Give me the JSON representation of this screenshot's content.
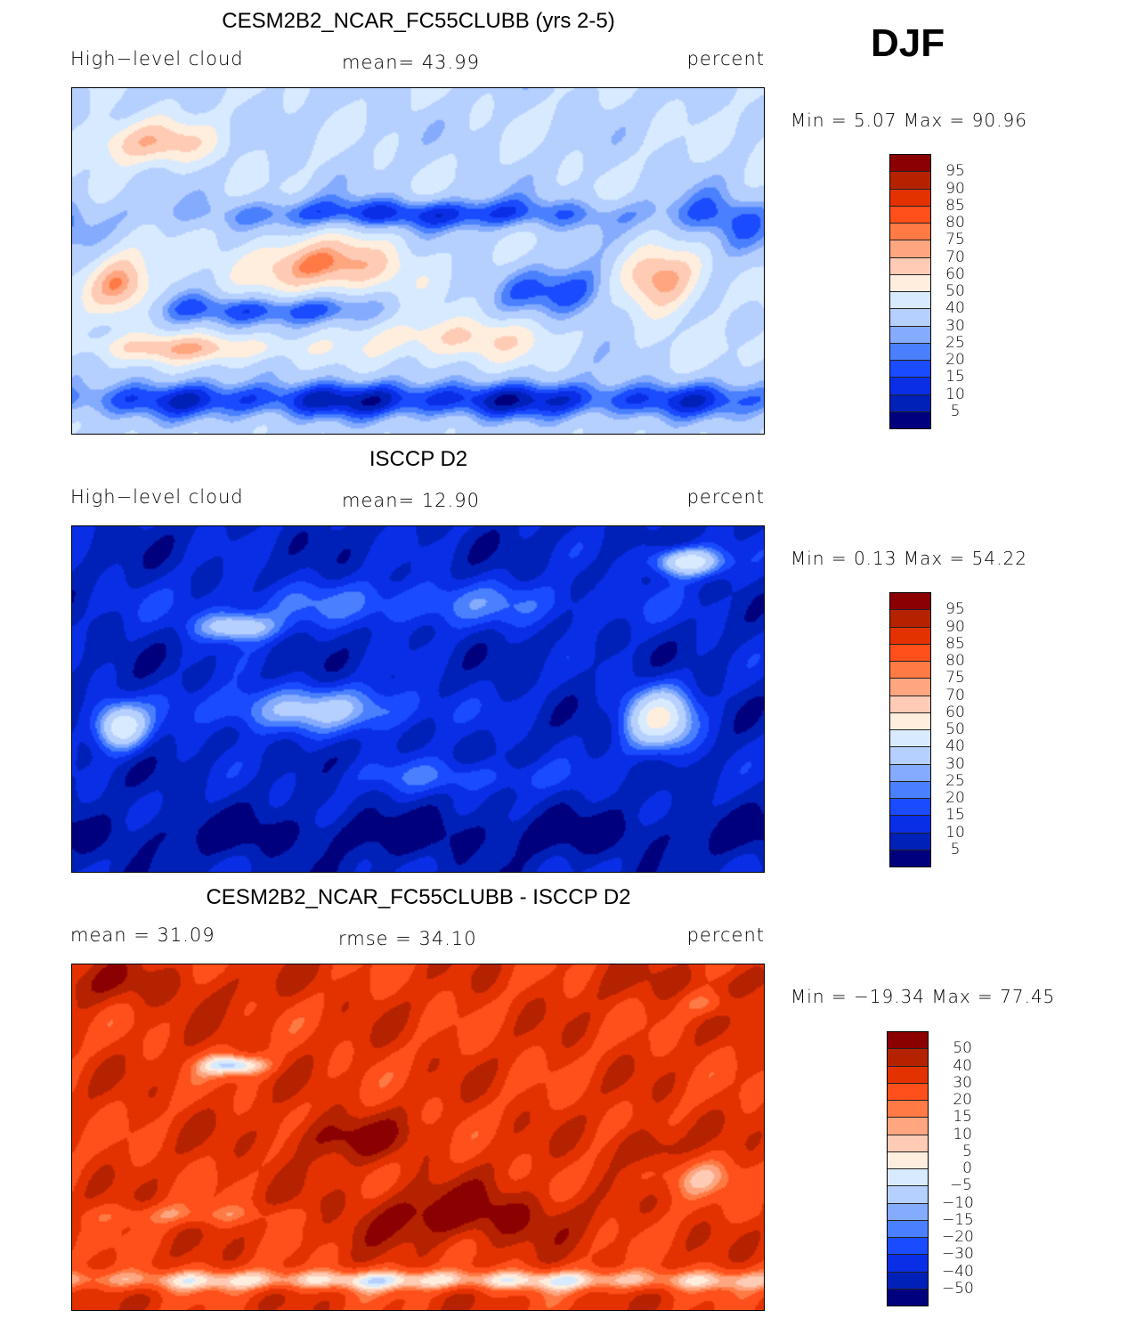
{
  "season": "DJF",
  "colors": [
    "#00007f",
    "#0021b8",
    "#0a2ee6",
    "#1a4bff",
    "#4a80ff",
    "#85abff",
    "#b5cfff",
    "#d8eaff",
    "#ffeede",
    "#ffcbb5",
    "#ffa57f",
    "#ff7a45",
    "#ff4f1a",
    "#e33200",
    "#b52200",
    "#8b0000"
  ],
  "chart_data": [
    {
      "type": "heatmap",
      "title": "CESM2B2_NCAR_FC55CLUBB (yrs 2-5)",
      "left_label": "High−level cloud",
      "center_label": "mean=   43.99",
      "right_label": "percent",
      "minmax": "Min =    5.07  Max =   90.96",
      "levels": [
        "5",
        "10",
        "15",
        "20",
        "25",
        "30",
        "40",
        "50",
        "60",
        "70",
        "75",
        "80",
        "85",
        "90",
        "95"
      ],
      "level_values": [
        5,
        10,
        15,
        20,
        25,
        30,
        40,
        50,
        60,
        70,
        75,
        80,
        85,
        90,
        95
      ],
      "min": 5.07,
      "max": 90.96,
      "mean": 43.99,
      "units": "percent"
    },
    {
      "type": "heatmap",
      "title": "ISCCP D2",
      "left_label": "High−level cloud",
      "center_label": "mean=   12.90",
      "right_label": "percent",
      "minmax": "Min =    0.13  Max =   54.22",
      "levels": [
        "5",
        "10",
        "15",
        "20",
        "25",
        "30",
        "40",
        "50",
        "60",
        "70",
        "75",
        "80",
        "85",
        "90",
        "95"
      ],
      "level_values": [
        5,
        10,
        15,
        20,
        25,
        30,
        40,
        50,
        60,
        70,
        75,
        80,
        85,
        90,
        95
      ],
      "min": 0.13,
      "max": 54.22,
      "mean": 12.9,
      "units": "percent"
    },
    {
      "type": "heatmap",
      "title": "CESM2B2_NCAR_FC55CLUBB - ISCCP D2",
      "left_label": "mean  =    31.09",
      "center_label": "rmse  =    34.10",
      "right_label": "percent",
      "minmax": "Min = −19.34  Max =    77.45",
      "levels": [
        "−50",
        "−40",
        "−30",
        "−20",
        "−15",
        "−10",
        "−5",
        "0",
        "5",
        "10",
        "15",
        "20",
        "30",
        "40",
        "50"
      ],
      "level_values": [
        -50,
        -40,
        -30,
        -20,
        -15,
        -10,
        -5,
        0,
        5,
        10,
        15,
        20,
        30,
        40,
        50
      ],
      "min": -19.34,
      "max": 77.45,
      "mean": 31.09,
      "rmse": 34.1,
      "units": "percent"
    }
  ]
}
